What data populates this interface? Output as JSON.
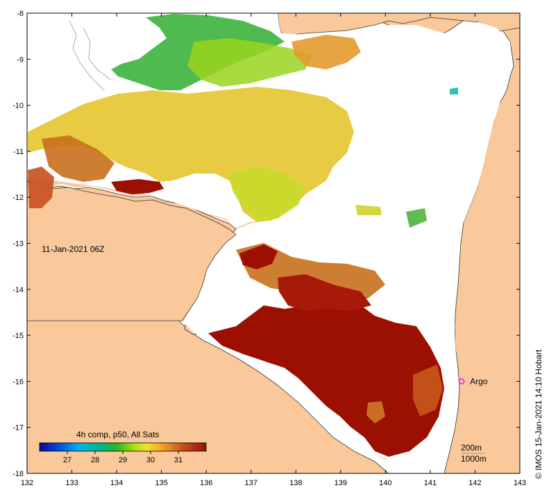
{
  "map": {
    "date_label": "11-Jan-2021 06Z",
    "credit": "©  IMOS 15-Jan-2021 14:10 Hobart",
    "x_ticks": [
      "132",
      "133",
      "134",
      "135",
      "136",
      "137",
      "138",
      "139",
      "140",
      "141",
      "142",
      "143"
    ],
    "y_ticks": [
      "-8",
      "-9",
      "-10",
      "-11",
      "-12",
      "-13",
      "-14",
      "-15",
      "-16",
      "-17",
      "-18"
    ],
    "lon_range": [
      132,
      143
    ],
    "lat_range": [
      -18,
      -8
    ],
    "marker": {
      "label": "Argo",
      "lon": 141.7,
      "lat": -16.0
    },
    "depth_contours": {
      "line1": "200m",
      "line2": "1000m"
    },
    "colorbar": {
      "title": "4h comp, p50, All Sats",
      "ticks": [
        "27",
        "28",
        "29",
        "30",
        "31"
      ],
      "range": [
        26,
        32
      ]
    },
    "colors": {
      "land": "#f9c89b",
      "no_data": "#ffffff",
      "marker": "#e83ae8",
      "sst_hot": "#9b1000",
      "sst_orange": "#c8701c",
      "sst_yellow": "#e6c733",
      "sst_green": "#3cb23c"
    }
  }
}
